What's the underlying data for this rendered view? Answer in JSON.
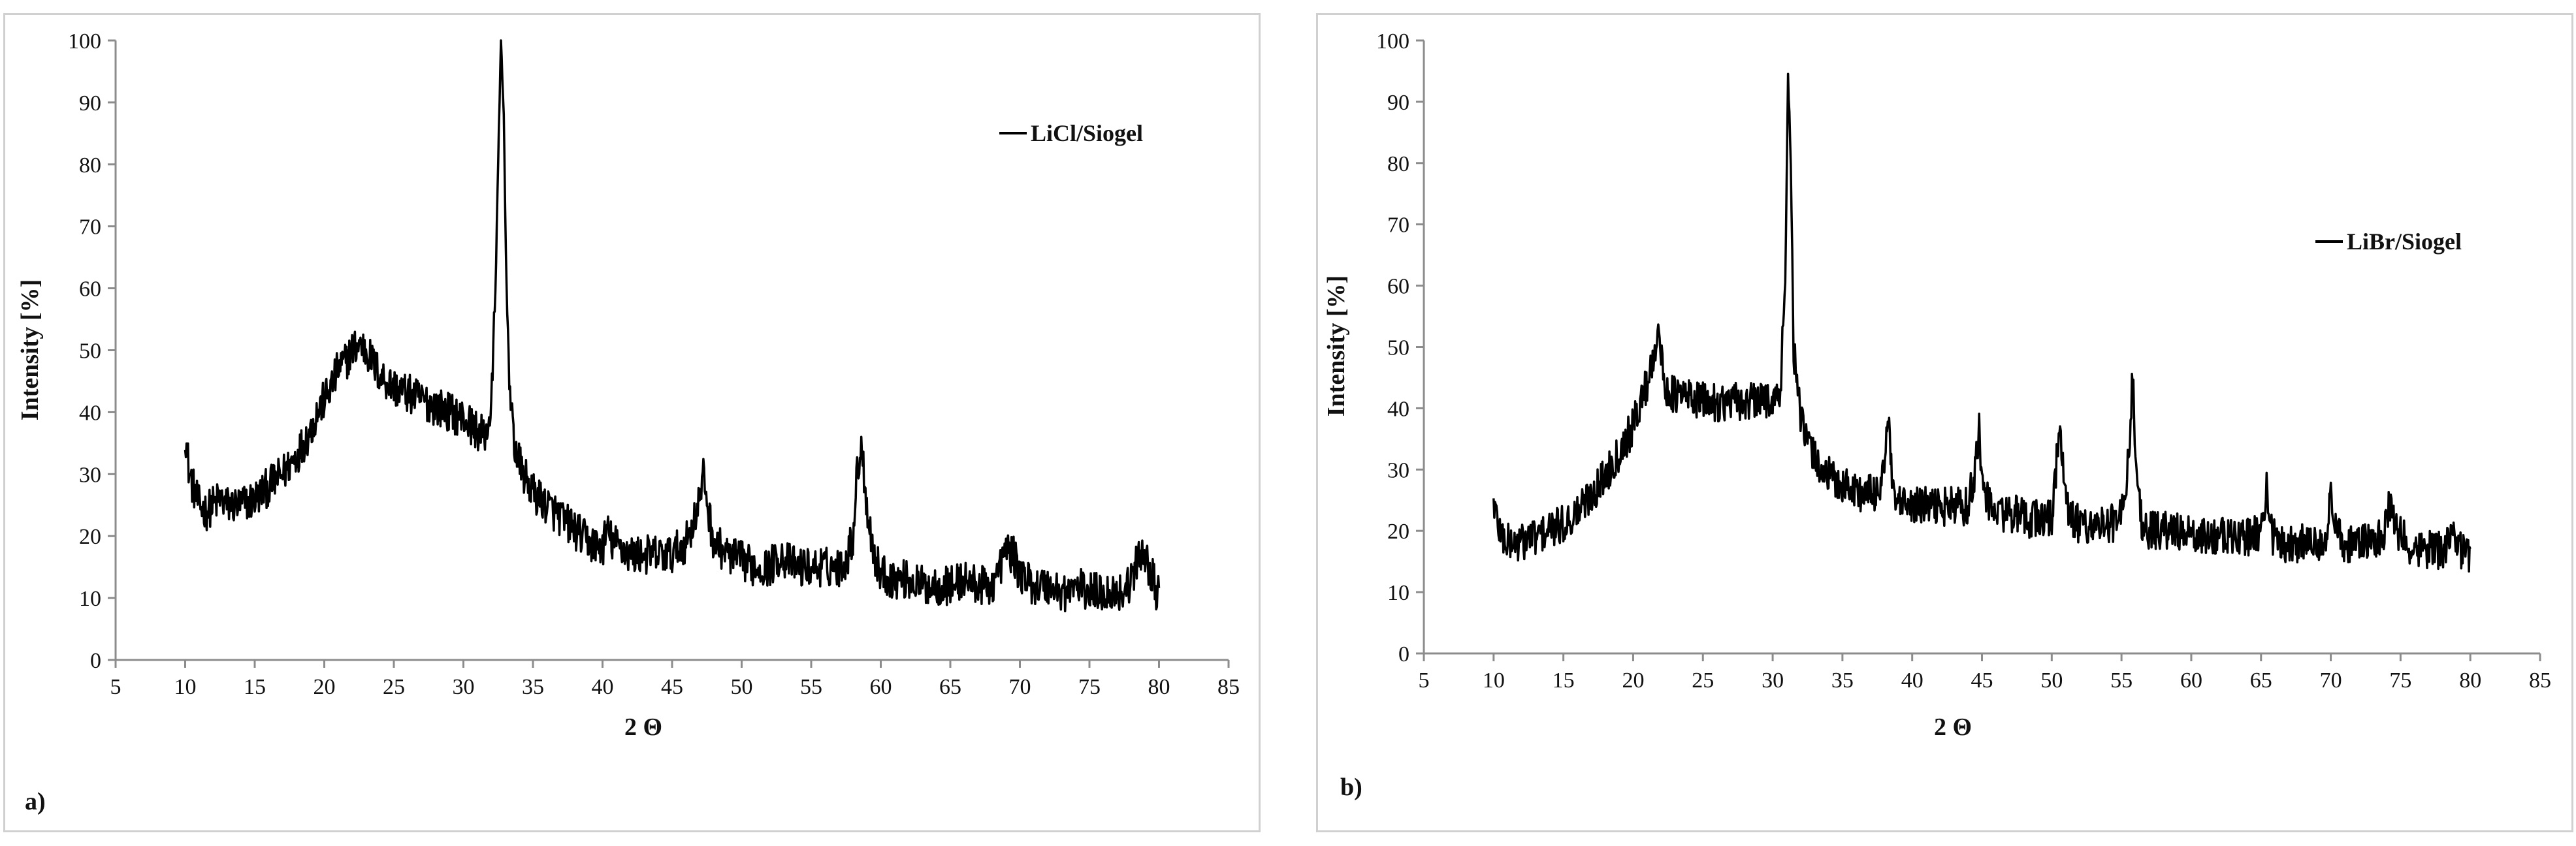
{
  "chart_data": [
    {
      "panel_label": "a)",
      "type": "line",
      "title": "",
      "xlabel": "2 Θ",
      "ylabel": "Intensity [%]",
      "xlim": [
        5,
        85
      ],
      "ylim": [
        0,
        100
      ],
      "xticks": [
        5,
        10,
        15,
        20,
        25,
        30,
        35,
        40,
        45,
        50,
        55,
        60,
        65,
        70,
        75,
        80,
        85
      ],
      "yticks": [
        0,
        10,
        20,
        30,
        40,
        50,
        60,
        70,
        80,
        90,
        100
      ],
      "grid": false,
      "legend_position": "top-right",
      "series": [
        {
          "name": "LiCl/Siogel",
          "color": "#000000",
          "x": [
            10,
            10.3,
            10.7,
            11,
            11.5,
            12,
            12.5,
            13,
            14,
            15,
            16,
            17,
            18,
            19,
            19.5,
            20,
            20.5,
            21,
            21.5,
            22,
            22.5,
            23,
            23.5,
            24,
            24.5,
            25,
            26,
            27,
            28,
            29,
            30,
            30.5,
            31,
            31.5,
            32,
            32.3,
            32.5,
            32.7,
            32.9,
            33.1,
            33.4,
            33.8,
            34.3,
            35,
            36,
            37,
            38,
            39,
            40,
            40.3,
            40.7,
            41.5,
            42,
            43,
            44,
            45,
            45.5,
            46,
            46.5,
            47,
            47.3,
            47.6,
            48,
            49,
            50,
            51,
            52,
            52.8,
            53.2,
            54,
            55,
            56,
            57,
            57.5,
            58,
            58.3,
            58.6,
            59,
            59.5,
            60,
            61,
            62,
            63,
            64,
            65,
            66,
            67,
            68,
            68.6,
            69,
            69.5,
            70,
            71,
            72,
            73,
            73.5,
            74,
            75,
            76,
            77,
            77.5,
            78,
            78.5,
            78.8,
            79.3,
            79.7,
            80
          ],
          "y": [
            37,
            30,
            27,
            25,
            24,
            25,
            26,
            25,
            25,
            26,
            28,
            30,
            33,
            37,
            40,
            42,
            44,
            47,
            48,
            50,
            51,
            50,
            48,
            46,
            45,
            44,
            43,
            42,
            41,
            40,
            39,
            38,
            37,
            36,
            40,
            60,
            80,
            100,
            88,
            60,
            40,
            33,
            30,
            27,
            25,
            23,
            21,
            19,
            18,
            21,
            19,
            18,
            17,
            17,
            17,
            17,
            18,
            19,
            22,
            26,
            30,
            24,
            19,
            17,
            16,
            15,
            15,
            17,
            16,
            15,
            15,
            15,
            15,
            16,
            20,
            30,
            35,
            25,
            17,
            14,
            13,
            13,
            12,
            12,
            12,
            13,
            12,
            12,
            15,
            18,
            17,
            14,
            12,
            12,
            11,
            11,
            12,
            11,
            11,
            11,
            11,
            13,
            16,
            18,
            15,
            12,
            10
          ]
        }
      ]
    },
    {
      "panel_label": "b)",
      "type": "line",
      "title": "",
      "xlabel": "2 Θ",
      "ylabel": "Intensity [%]",
      "xlim": [
        5,
        85
      ],
      "ylim": [
        0,
        100
      ],
      "xticks": [
        5,
        10,
        15,
        20,
        25,
        30,
        35,
        40,
        45,
        50,
        55,
        60,
        65,
        70,
        75,
        80,
        85
      ],
      "yticks": [
        0,
        10,
        20,
        30,
        40,
        50,
        60,
        70,
        80,
        90,
        100
      ],
      "grid": false,
      "legend_position": "top-right",
      "series": [
        {
          "name": "LiBr/Siogel",
          "color": "#000000",
          "x": [
            10,
            10.3,
            10.7,
            11,
            11.5,
            12,
            12.5,
            13,
            14,
            15,
            16,
            17,
            18,
            19,
            20,
            20.5,
            21,
            21.5,
            21.8,
            22,
            22.3,
            22.7,
            23,
            24,
            25,
            26,
            27,
            28,
            29,
            30,
            30.5,
            30.9,
            31.1,
            31.3,
            31.5,
            31.8,
            32.2,
            32.8,
            33.5,
            34.5,
            35.5,
            36.5,
            37.5,
            38,
            38.3,
            38.6,
            39,
            40,
            41,
            42,
            43,
            44,
            44.5,
            44.8,
            45.1,
            45.5,
            46,
            47,
            48,
            49,
            50,
            50.3,
            50.6,
            50.9,
            51.3,
            52,
            53,
            54,
            55,
            55.5,
            55.8,
            56.1,
            56.5,
            57,
            58,
            59,
            60,
            61,
            62,
            63,
            64,
            65,
            65.4,
            65.8,
            66.5,
            67,
            68,
            69,
            69.7,
            70,
            70.5,
            71,
            72,
            73,
            73.8,
            74.2,
            74.7,
            75.5,
            76,
            77,
            78,
            78.8,
            79.3,
            80
          ],
          "y": [
            25,
            21,
            19,
            18,
            18,
            18,
            19,
            19,
            20,
            21,
            23,
            26,
            29,
            33,
            37,
            41,
            44,
            49,
            54,
            48,
            43,
            43,
            42,
            42,
            41,
            41,
            41,
            41,
            41,
            42,
            41,
            60,
            95,
            80,
            50,
            42,
            36,
            33,
            30,
            28,
            27,
            26,
            26,
            31,
            38,
            26,
            24,
            24,
            24,
            24,
            24,
            24,
            30,
            36,
            27,
            24,
            23,
            23,
            22,
            22,
            22,
            30,
            38,
            26,
            22,
            21,
            21,
            21,
            22,
            32,
            45,
            28,
            21,
            20,
            20,
            20,
            19,
            19,
            19,
            19,
            19,
            20,
            27,
            19,
            18,
            18,
            18,
            18,
            20,
            25,
            19,
            18,
            18,
            18,
            19,
            24,
            20,
            18,
            17,
            17,
            17,
            20,
            17,
            16
          ]
        }
      ]
    }
  ]
}
